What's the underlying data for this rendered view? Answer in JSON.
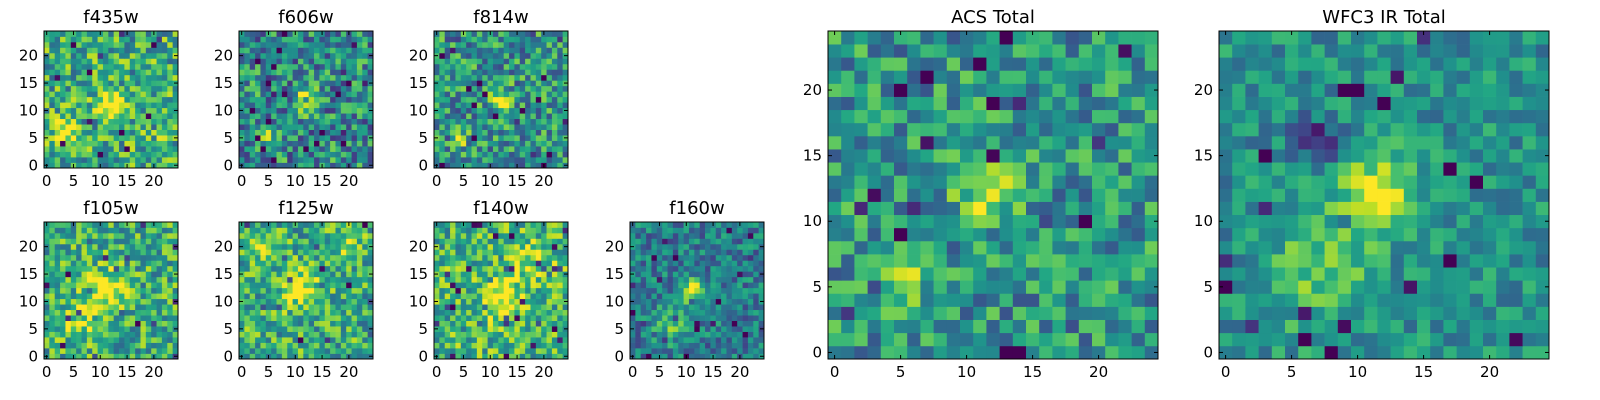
{
  "figure": {
    "colormap": "viridis",
    "background": "#ffffff"
  },
  "chart_data": [
    {
      "type": "heatmap",
      "title": "f435w",
      "size": 25,
      "seed": 11,
      "xticks": [
        0,
        5,
        10,
        15,
        20
      ],
      "yticks": [
        0,
        5,
        10,
        15,
        20
      ],
      "xlim": [
        0,
        25
      ],
      "ylim": [
        0,
        25
      ],
      "features": [
        {
          "x": 12,
          "y": 11,
          "sigma": 1.6,
          "amp": 0.55
        },
        {
          "x": 3,
          "y": 6,
          "sigma": 1.5,
          "amp": 0.35
        },
        {
          "x": 20,
          "y": 7,
          "sigma": 2.0,
          "amp": 0.2
        }
      ],
      "base": 0.62,
      "noise": 0.3,
      "value_range": [
        0,
        1
      ]
    },
    {
      "type": "heatmap",
      "title": "f606w",
      "size": 25,
      "seed": 23,
      "xticks": [
        0,
        5,
        10,
        15,
        20
      ],
      "yticks": [
        0,
        5,
        10,
        15,
        20
      ],
      "xlim": [
        0,
        25
      ],
      "ylim": [
        0,
        25
      ],
      "features": [
        {
          "x": 12,
          "y": 12,
          "sigma": 1.4,
          "amp": 0.5
        },
        {
          "x": 5,
          "y": 5,
          "sigma": 1.3,
          "amp": 0.35
        }
      ],
      "base": 0.48,
      "noise": 0.32,
      "value_range": [
        0,
        1
      ]
    },
    {
      "type": "heatmap",
      "title": "f814w",
      "size": 25,
      "seed": 37,
      "xticks": [
        0,
        5,
        10,
        15,
        20
      ],
      "yticks": [
        0,
        5,
        10,
        15,
        20
      ],
      "xlim": [
        0,
        25
      ],
      "ylim": [
        0,
        25
      ],
      "features": [
        {
          "x": 12,
          "y": 12,
          "sigma": 1.5,
          "amp": 0.45
        },
        {
          "x": 4,
          "y": 5,
          "sigma": 1.3,
          "amp": 0.3
        }
      ],
      "base": 0.52,
      "noise": 0.3,
      "value_range": [
        0,
        1
      ]
    },
    {
      "type": "heatmap",
      "title": "f105w",
      "size": 25,
      "seed": 41,
      "xticks": [
        0,
        5,
        10,
        15,
        20
      ],
      "yticks": [
        0,
        5,
        10,
        15,
        20
      ],
      "xlim": [
        0,
        25
      ],
      "ylim": [
        0,
        25
      ],
      "features": [
        {
          "x": 11,
          "y": 12,
          "sigma": 2.5,
          "amp": 0.45
        },
        {
          "x": 6,
          "y": 6,
          "sigma": 2.2,
          "amp": 0.25
        }
      ],
      "base": 0.62,
      "noise": 0.28,
      "value_range": [
        0,
        1
      ]
    },
    {
      "type": "heatmap",
      "title": "f125w",
      "size": 25,
      "seed": 53,
      "xticks": [
        0,
        5,
        10,
        15,
        20
      ],
      "yticks": [
        0,
        5,
        10,
        15,
        20
      ],
      "xlim": [
        0,
        25
      ],
      "ylim": [
        0,
        25
      ],
      "features": [
        {
          "x": 11,
          "y": 12,
          "sigma": 2.5,
          "amp": 0.4
        },
        {
          "x": 4,
          "y": 20,
          "sigma": 2.0,
          "amp": 0.3
        },
        {
          "x": 20,
          "y": 20,
          "sigma": 2.0,
          "amp": 0.25
        }
      ],
      "base": 0.62,
      "noise": 0.28,
      "value_range": [
        0,
        1
      ]
    },
    {
      "type": "heatmap",
      "title": "f140w",
      "size": 25,
      "seed": 67,
      "xticks": [
        0,
        5,
        10,
        15,
        20
      ],
      "yticks": [
        0,
        5,
        10,
        15,
        20
      ],
      "xlim": [
        0,
        25
      ],
      "ylim": [
        0,
        25
      ],
      "features": [
        {
          "x": 12,
          "y": 11,
          "sigma": 2.5,
          "amp": 0.45
        },
        {
          "x": 18,
          "y": 18,
          "sigma": 2.2,
          "amp": 0.25
        }
      ],
      "base": 0.66,
      "noise": 0.28,
      "value_range": [
        0,
        1
      ]
    },
    {
      "type": "heatmap",
      "title": "f160w",
      "size": 25,
      "seed": 79,
      "xticks": [
        0,
        5,
        10,
        15,
        20
      ],
      "yticks": [
        0,
        5,
        10,
        15,
        20
      ],
      "xlim": [
        0,
        25
      ],
      "ylim": [
        0,
        25
      ],
      "features": [
        {
          "x": 11,
          "y": 12,
          "sigma": 1.5,
          "amp": 0.6
        },
        {
          "x": 7,
          "y": 6,
          "sigma": 2.2,
          "amp": 0.3
        }
      ],
      "base": 0.42,
      "noise": 0.22,
      "value_range": [
        0,
        1
      ]
    },
    {
      "type": "heatmap",
      "title": "ACS Total",
      "size": 25,
      "seed": 97,
      "xticks": [
        0,
        5,
        10,
        15,
        20
      ],
      "yticks": [
        0,
        5,
        10,
        15,
        20
      ],
      "xlim": [
        0,
        25
      ],
      "ylim": [
        0,
        25
      ],
      "features": [
        {
          "x": 11.5,
          "y": 12,
          "sigma": 1.4,
          "amp": 0.5
        },
        {
          "x": 5,
          "y": 5.5,
          "sigma": 1.1,
          "amp": 0.4
        }
      ],
      "base": 0.52,
      "noise": 0.26,
      "value_range": [
        0,
        1
      ]
    },
    {
      "type": "heatmap",
      "title": "WFC3 IR Total",
      "size": 25,
      "seed": 113,
      "xticks": [
        0,
        5,
        10,
        15,
        20
      ],
      "yticks": [
        0,
        5,
        10,
        15,
        20
      ],
      "xlim": [
        0,
        25
      ],
      "ylim": [
        0,
        25
      ],
      "features": [
        {
          "x": 11.5,
          "y": 12,
          "sigma": 2.0,
          "amp": 0.55
        },
        {
          "x": 7,
          "y": 6,
          "sigma": 2.8,
          "amp": 0.25
        },
        {
          "x": 7,
          "y": 16,
          "sigma": 1.2,
          "amp": -0.45
        }
      ],
      "base": 0.5,
      "noise": 0.18,
      "value_range": [
        0,
        1
      ]
    }
  ]
}
